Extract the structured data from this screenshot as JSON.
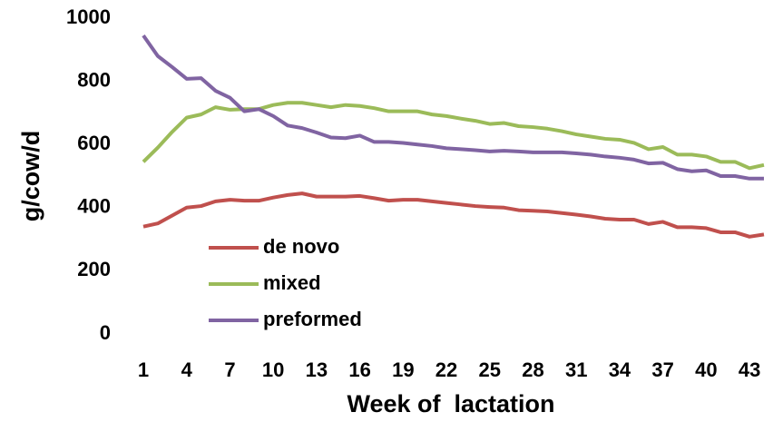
{
  "chart_data": {
    "type": "line",
    "x_label": "Week of  lactation",
    "y_label": "g/cow/d",
    "x": [
      1,
      2,
      3,
      4,
      5,
      6,
      7,
      8,
      9,
      10,
      11,
      12,
      13,
      14,
      15,
      16,
      17,
      18,
      19,
      20,
      21,
      22,
      23,
      24,
      25,
      26,
      27,
      28,
      29,
      30,
      31,
      32,
      33,
      34,
      35,
      36,
      37,
      38,
      39,
      40,
      41,
      42,
      43,
      44
    ],
    "xlim": [
      1,
      44
    ],
    "xticks": [
      1,
      4,
      7,
      10,
      13,
      16,
      19,
      22,
      25,
      28,
      31,
      34,
      37,
      40,
      43
    ],
    "ylim": [
      0,
      1000
    ],
    "yticks": [
      0,
      200,
      400,
      600,
      800,
      1000
    ],
    "grid": false,
    "legend": "lower left",
    "series": [
      {
        "name": "de novo",
        "color": "#c0504d",
        "values": [
          340,
          350,
          375,
          400,
          405,
          420,
          425,
          422,
          422,
          432,
          440,
          445,
          435,
          435,
          435,
          437,
          430,
          422,
          425,
          425,
          420,
          415,
          410,
          405,
          402,
          400,
          392,
          390,
          388,
          383,
          378,
          372,
          365,
          362,
          362,
          348,
          355,
          338,
          338,
          335,
          322,
          322,
          308,
          315
        ]
      },
      {
        "name": "mixed",
        "color": "#9bbb59",
        "values": [
          545,
          590,
          640,
          685,
          695,
          718,
          710,
          712,
          712,
          725,
          732,
          732,
          725,
          718,
          725,
          722,
          715,
          705,
          705,
          705,
          695,
          690,
          682,
          675,
          665,
          668,
          658,
          655,
          650,
          642,
          632,
          625,
          618,
          615,
          605,
          585,
          592,
          568,
          568,
          562,
          545,
          545,
          525,
          535
        ]
      },
      {
        "name": "preformed",
        "color": "#8064a2",
        "values": [
          945,
          880,
          845,
          808,
          810,
          770,
          748,
          705,
          712,
          690,
          660,
          652,
          638,
          622,
          620,
          628,
          608,
          608,
          605,
          600,
          595,
          588,
          585,
          582,
          578,
          580,
          578,
          575,
          575,
          575,
          572,
          568,
          562,
          558,
          552,
          540,
          542,
          522,
          515,
          518,
          500,
          500,
          492,
          492
        ]
      }
    ]
  }
}
